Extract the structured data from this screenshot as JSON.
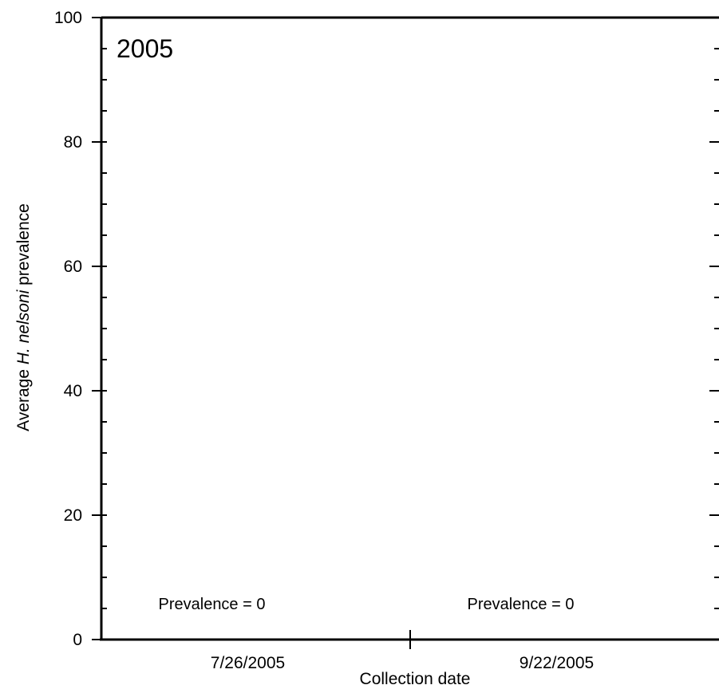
{
  "chart_data": {
    "type": "bar",
    "panel_label": "2005",
    "categories": [
      "7/26/2005",
      "9/22/2005"
    ],
    "values": [
      0,
      0
    ],
    "annotations": [
      "Prevalence = 0",
      "Prevalence = 0"
    ],
    "xlabel": "Collection date",
    "ylabel": {
      "before": "Average ",
      "italic": "H. nelsoni",
      "after": " prevalence"
    },
    "ylim": [
      0,
      100
    ],
    "y_ticks": [
      0,
      20,
      40,
      60,
      80,
      100
    ],
    "y_minor_step": 5,
    "grid": false,
    "legend": "none"
  }
}
